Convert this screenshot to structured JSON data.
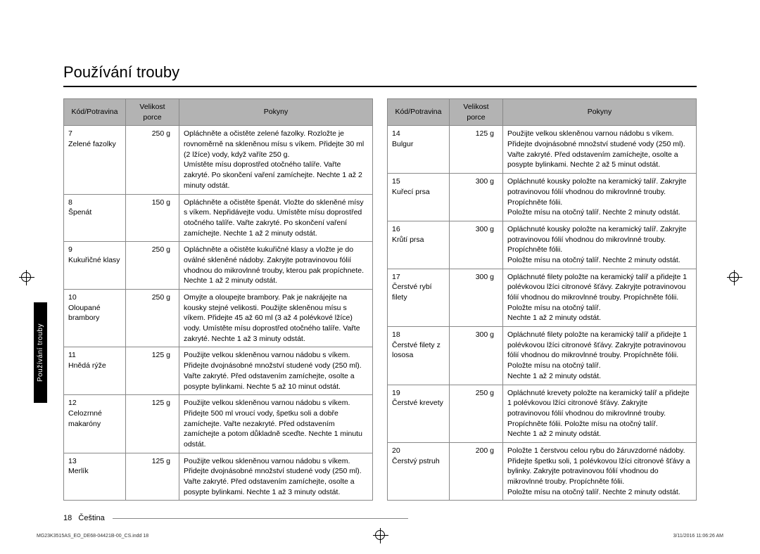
{
  "title": "Používání trouby",
  "sideTab": "Používání trouby",
  "headers": {
    "code": "Kód/Potravina",
    "portion": "Velikost porce",
    "instructions": "Pokyny"
  },
  "leftTable": [
    {
      "code": "7\nZelené fazolky",
      "portion": "250 g",
      "instructions": "Opláchněte a očistěte zelené fazolky. Rozložte je rovnoměrně na skleněnou mísu s víkem. Přidejte 30 ml (2 lžíce) vody, když vaříte 250 g.\nUmístěte mísu doprostřed otočného talíře. Vařte zakryté. Po skončení vaření zamíchejte. Nechte 1 až 2 minuty odstát."
    },
    {
      "code": "8\nŠpenát",
      "portion": "150 g",
      "instructions": "Opláchněte a očistěte špenát. Vložte do skleněné mísy s víkem. Nepřidávejte vodu. Umístěte mísu doprostřed otočného talíře. Vařte zakryté. Po skončení vaření zamíchejte. Nechte 1 až 2 minuty odstát."
    },
    {
      "code": "9\nKukuřičné klasy",
      "portion": "250 g",
      "instructions": "Opláchněte a očistěte kukuřičné klasy a vložte je do oválné skleněné nádoby. Zakryjte potravinovou fólií vhodnou do mikrovlnné trouby, kterou pak propíchnete. Nechte 1 až 2 minuty odstát."
    },
    {
      "code": "10\nOloupané brambory",
      "portion": "250 g",
      "instructions": "Omyjte a oloupejte brambory. Pak je nakrájejte na kousky stejné velikosti. Použijte skleněnou mísu s víkem. Přidejte 45 až 60 ml (3 až 4 polévkové lžíce) vody. Umístěte mísu doprostřed otočného talíře. Vařte zakryté. Nechte 1 až 3 minuty odstát."
    },
    {
      "code": "11\nHnědá rýže",
      "portion": "125 g",
      "instructions": "Použijte velkou skleněnou varnou nádobu s víkem. Přidejte dvojnásobné množství studené vody (250 ml). Vařte zakryté. Před odstavením zamíchejte, osolte a posypte bylinkami. Nechte 5 až 10 minut odstát."
    },
    {
      "code": "12\nCelozrnné makaróny",
      "portion": "125 g",
      "instructions": "Použijte velkou skleněnou varnou nádobu s víkem. Přidejte 500 ml vroucí vody, špetku soli a dobře zamíchejte. Vařte nezakryté. Před odstavením zamíchejte a potom důkladně sceďte. Nechte 1 minutu odstát."
    },
    {
      "code": "13\nMerlík",
      "portion": "125 g",
      "instructions": "Použijte velkou skleněnou varnou nádobu s víkem. Přidejte dvojnásobné množství studené vody (250 ml). Vařte zakryté. Před odstavením zamíchejte, osolte a posypte bylinkami. Nechte 1 až 3 minuty odstát."
    }
  ],
  "rightTable": [
    {
      "code": "14\nBulgur",
      "portion": "125 g",
      "instructions": "Použijte velkou skleněnou varnou nádobu s víkem. Přidejte dvojnásobné množství studené vody (250 ml). Vařte zakryté. Před odstavením zamíchejte, osolte a posypte bylinkami. Nechte 2 až 5 minut odstát."
    },
    {
      "code": "15\nKuřecí prsa",
      "portion": "300 g",
      "instructions": "Opláchnuté kousky položte na keramický talíř. Zakryjte potravinovou fólií vhodnou do mikrovlnné trouby. Propíchněte fólii.\nPoložte mísu na otočný talíř. Nechte 2 minuty odstát."
    },
    {
      "code": "16\nKrůtí prsa",
      "portion": "300 g",
      "instructions": "Opláchnuté kousky položte na keramický talíř. Zakryjte potravinovou fólií vhodnou do mikrovlnné trouby. Propíchněte fólii.\nPoložte mísu na otočný talíř. Nechte 2 minuty odstát."
    },
    {
      "code": "17\nČerstvé rybí filety",
      "portion": "300 g",
      "instructions": "Opláchnuté filety položte na keramický talíř a přidejte 1 polévkovou lžíci citronové šťávy. Zakryjte potravinovou fólií vhodnou do mikrovlnné trouby. Propíchněte fólii. Položte mísu na otočný talíř.\nNechte 1 až 2 minuty odstát."
    },
    {
      "code": "18\nČerstvé filety z lososa",
      "portion": "300 g",
      "instructions": "Opláchnuté filety položte na keramický talíř a přidejte 1 polévkovou lžíci citronové šťávy. Zakryjte potravinovou fólií vhodnou do mikrovlnné trouby. Propíchněte fólii. Položte mísu na otočný talíř.\nNechte 1 až 2 minuty odstát."
    },
    {
      "code": "19\nČerstvé krevety",
      "portion": "250 g",
      "instructions": "Opláchnuté krevety položte na keramický talíř a přidejte 1 polévkovou lžíci citronové šťávy. Zakryjte potravinovou fólií vhodnou do mikrovlnné trouby. Propíchněte fólii. Položte mísu na otočný talíř.\nNechte 1 až 2 minuty odstát."
    },
    {
      "code": "20\nČerstvý pstruh",
      "portion": "200 g",
      "instructions": "Položte 1 čerstvou celou rybu do žáruvzdorné nádoby. Přidejte špetku soli, 1 polévkovou lžíci citronové šťávy a bylinky. Zakryjte potravinovou fólií vhodnou do mikrovlnné trouby. Propíchněte fólii.\nPoložte mísu na otočný talíř. Nechte 2 minuty odstát."
    }
  ],
  "footer": {
    "pageNum": "18",
    "lang": "Čeština"
  },
  "printMeta": {
    "left": "MG23K3515AS_EO_DE68-04421B-00_CS.indd   18",
    "right": "3/11/2016   11:06:26 AM"
  },
  "colors": {
    "headerBg": "#b3b3b3",
    "border": "#888888",
    "text": "#000000"
  }
}
